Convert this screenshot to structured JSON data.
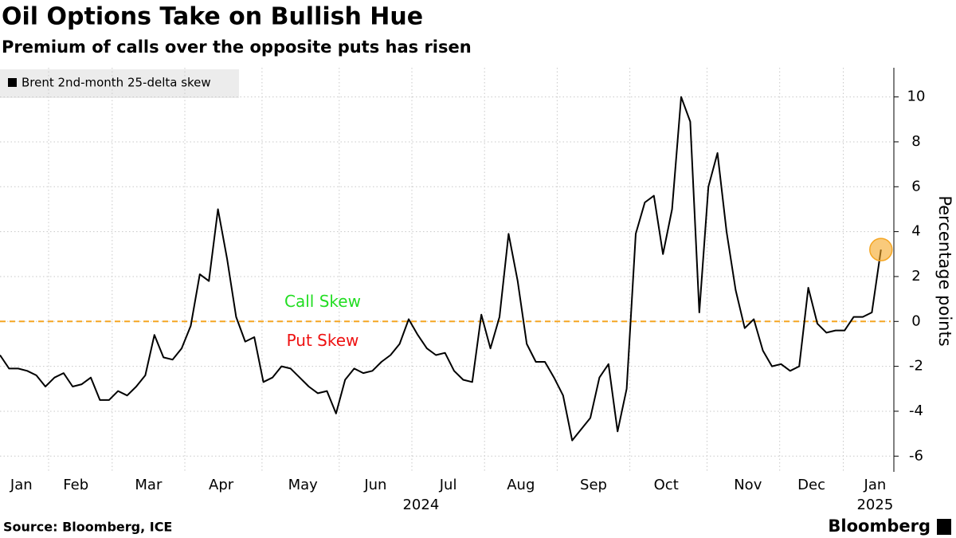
{
  "chart_data": {
    "type": "line",
    "title": "Oil Options Take on Bullish Hue",
    "subtitle": "Premium of calls over the opposite puts has risen",
    "y_label": "Percentage points",
    "source": "Source: Bloomberg, ICE",
    "brand": "Bloomberg",
    "annotations": [
      {
        "text": "Call Skew",
        "color": "#22dd22"
      },
      {
        "text": "Put Skew",
        "color": "#ee1111"
      }
    ],
    "reference_line": {
      "value": 0,
      "color": "#f5a623"
    },
    "highlight_last": {
      "color": "#f5a623"
    },
    "legend": "top-left",
    "grid": true,
    "categories": [
      null,
      null,
      "Jan",
      null,
      null,
      null,
      null,
      null,
      "Feb",
      null,
      null,
      null,
      null,
      null,
      null,
      null,
      "Mar",
      null,
      null,
      null,
      null,
      null,
      null,
      null,
      "Apr",
      null,
      null,
      null,
      null,
      null,
      null,
      null,
      null,
      "May",
      null,
      null,
      null,
      null,
      null,
      null,
      null,
      "Jun",
      null,
      null,
      null,
      null,
      null,
      null,
      null,
      "Jul",
      null,
      null,
      null,
      null,
      null,
      null,
      null,
      "Aug",
      null,
      null,
      null,
      null,
      null,
      null,
      null,
      "Sep",
      null,
      null,
      null,
      null,
      null,
      null,
      null,
      "Oct",
      null,
      null,
      null,
      null,
      null,
      null,
      null,
      null,
      "Nov",
      null,
      null,
      null,
      null,
      null,
      null,
      "Dec",
      null,
      null,
      null,
      null,
      null,
      null,
      "Jan",
      null
    ],
    "category_years": [
      null,
      null,
      null,
      null,
      null,
      null,
      null,
      null,
      null,
      null,
      null,
      null,
      null,
      null,
      null,
      null,
      null,
      null,
      null,
      null,
      null,
      null,
      null,
      null,
      null,
      null,
      null,
      null,
      null,
      null,
      null,
      null,
      null,
      null,
      null,
      null,
      null,
      null,
      null,
      null,
      null,
      null,
      null,
      null,
      null,
      null,
      "2024",
      null,
      null,
      null,
      null,
      null,
      null,
      null,
      null,
      null,
      null,
      null,
      null,
      null,
      null,
      null,
      null,
      null,
      null,
      null,
      null,
      null,
      null,
      null,
      null,
      null,
      null,
      null,
      null,
      null,
      null,
      null,
      null,
      null,
      null,
      null,
      null,
      null,
      null,
      null,
      null,
      null,
      null,
      null,
      null,
      null,
      null,
      null,
      null,
      null,
      "2025",
      null
    ],
    "series": [
      {
        "name": "Brent 2nd-month 25-delta skew",
        "color": "#000000",
        "values": [
          -1.5,
          -2.1,
          -2.1,
          -2.2,
          -2.4,
          -2.9,
          -2.5,
          -2.3,
          -2.9,
          -2.8,
          -2.5,
          -3.5,
          -3.5,
          -3.1,
          -3.3,
          -2.9,
          -2.4,
          -0.6,
          -1.6,
          -1.7,
          -1.2,
          -0.2,
          2.1,
          1.8,
          5.0,
          2.8,
          0.2,
          -0.9,
          -0.7,
          -2.7,
          -2.5,
          -2.0,
          -2.1,
          -2.5,
          -2.9,
          -3.2,
          -3.1,
          -4.1,
          -2.6,
          -2.1,
          -2.3,
          -2.2,
          -1.8,
          -1.5,
          -1.0,
          0.1,
          -0.6,
          -1.2,
          -1.5,
          -1.4,
          -2.2,
          -2.6,
          -2.7,
          0.3,
          -1.2,
          0.2,
          3.9,
          1.8,
          -1.0,
          -1.8,
          -1.8,
          -2.5,
          -3.3,
          -5.3,
          -4.8,
          -4.3,
          -2.5,
          -1.9,
          -4.9,
          -3.0,
          3.9,
          5.3,
          5.6,
          3.0,
          5.0,
          10.0,
          8.9,
          0.4,
          6.0,
          7.5,
          4.0,
          1.4,
          -0.3,
          0.1,
          -1.3,
          -2.0,
          -1.9,
          -2.2,
          -2.0,
          1.5,
          -0.1,
          -0.5,
          -0.4,
          -0.4,
          0.2,
          0.2,
          0.4,
          3.2
        ]
      }
    ],
    "ylim": [
      -6.7,
      11.3
    ],
    "yticks": [
      -6,
      -4,
      -2,
      0,
      2,
      4,
      6,
      8,
      10
    ]
  }
}
